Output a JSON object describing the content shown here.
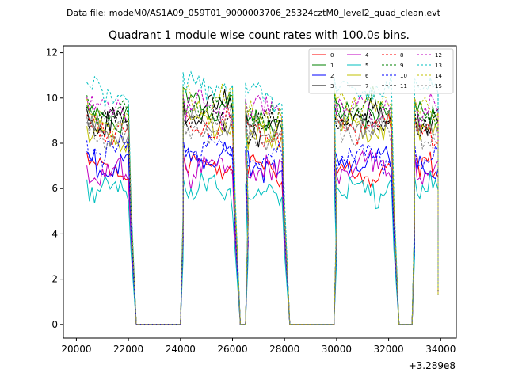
{
  "suptitle": "Data file: modeM0/AS1A09_059T01_9000003706_25324cztM0_level2_quad_clean.evt",
  "chart_data": {
    "type": "line",
    "title": "Quadrant 1 module wise count rates with 100.0s bins.",
    "xlabel": "",
    "ylabel": "",
    "x_offset_label": "+3.289e8",
    "xlim": [
      19500,
      34600
    ],
    "ylim": [
      -0.6,
      12.3
    ],
    "xticks": [
      20000,
      22000,
      24000,
      26000,
      28000,
      30000,
      32000,
      34000
    ],
    "yticks": [
      0,
      2,
      4,
      6,
      8,
      10,
      12
    ],
    "legend_position": "top-right",
    "segments": [
      {
        "start": 20400,
        "end": 22000,
        "drop_end": 22300
      },
      {
        "start": 24100,
        "end": 26000,
        "drop_end": 26300
      },
      {
        "start": 26500,
        "end": 27900,
        "drop_end": 28200
      },
      {
        "start": 29900,
        "end": 32100,
        "drop_end": 32400
      },
      {
        "start": 33000,
        "end": 33900,
        "drop_end": null
      }
    ],
    "zero_gaps": [
      [
        22300,
        24000
      ],
      [
        26300,
        26500
      ],
      [
        28200,
        29900
      ],
      [
        32400,
        32900
      ]
    ],
    "series": [
      {
        "name": "0",
        "color": "#ff0000",
        "dash": "solid",
        "levels": [
          6.8,
          7.0,
          6.9,
          6.6,
          6.8
        ]
      },
      {
        "name": "1",
        "color": "#008000",
        "dash": "solid",
        "levels": [
          9.1,
          9.8,
          8.9,
          9.4,
          9.2
        ]
      },
      {
        "name": "2",
        "color": "#0000ff",
        "dash": "solid",
        "levels": [
          7.0,
          7.3,
          7.0,
          7.3,
          7.0
        ]
      },
      {
        "name": "3",
        "color": "#000000",
        "dash": "solid",
        "levels": [
          9.0,
          9.5,
          8.8,
          9.2,
          9.0
        ]
      },
      {
        "name": "4",
        "color": "#c000c0",
        "dash": "solid",
        "levels": [
          6.6,
          7.0,
          6.8,
          7.0,
          6.9
        ]
      },
      {
        "name": "5",
        "color": "#00bfbf",
        "dash": "solid",
        "levels": [
          5.8,
          5.9,
          5.7,
          6.0,
          5.9
        ]
      },
      {
        "name": "6",
        "color": "#c0c000",
        "dash": "solid",
        "levels": [
          8.3,
          8.9,
          8.3,
          8.6,
          8.5
        ]
      },
      {
        "name": "7",
        "color": "#808080",
        "dash": "solid",
        "levels": [
          8.5,
          8.9,
          8.4,
          8.8,
          8.6
        ]
      },
      {
        "name": "8",
        "color": "#ff0000",
        "dash": "dashed",
        "levels": [
          8.6,
          8.8,
          8.4,
          8.7,
          8.4
        ]
      },
      {
        "name": "9",
        "color": "#008000",
        "dash": "dashed",
        "levels": [
          9.3,
          9.6,
          9.2,
          9.6,
          9.3
        ]
      },
      {
        "name": "10",
        "color": "#0000ff",
        "dash": "dashed",
        "levels": [
          7.6,
          7.7,
          7.5,
          7.4,
          7.4
        ]
      },
      {
        "name": "11",
        "color": "#000000",
        "dash": "dashed",
        "levels": [
          8.9,
          9.2,
          8.8,
          9.1,
          8.9
        ]
      },
      {
        "name": "12",
        "color": "#c000c0",
        "dash": "dashed",
        "levels": [
          9.5,
          9.6,
          9.4,
          9.5,
          9.3
        ]
      },
      {
        "name": "13",
        "color": "#00bfbf",
        "dash": "dashed",
        "levels": [
          10.2,
          10.5,
          10.0,
          10.4,
          10.3
        ]
      },
      {
        "name": "14",
        "color": "#c0c000",
        "dash": "dashed",
        "levels": [
          9.2,
          9.9,
          9.1,
          9.7,
          9.4
        ]
      },
      {
        "name": "15",
        "color": "#808080",
        "dash": "dashed",
        "levels": [
          8.5,
          8.7,
          8.3,
          8.6,
          8.4
        ]
      }
    ]
  }
}
